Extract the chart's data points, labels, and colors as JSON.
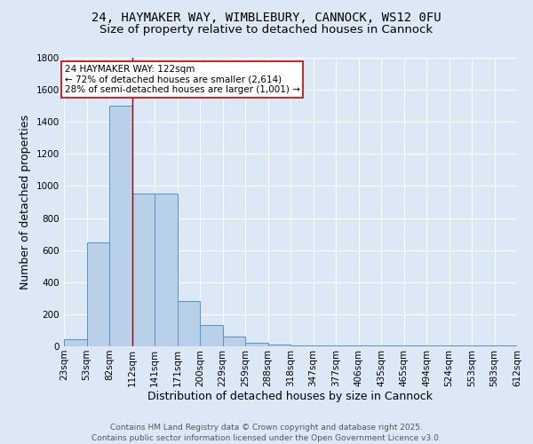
{
  "title_line1": "24, HAYMAKER WAY, WIMBLEBURY, CANNOCK, WS12 0FU",
  "title_line2": "Size of property relative to detached houses in Cannock",
  "xlabel": "Distribution of detached houses by size in Cannock",
  "ylabel": "Number of detached properties",
  "bar_values": [
    45,
    650,
    1500,
    950,
    950,
    280,
    135,
    60,
    20,
    10,
    8,
    5,
    5,
    5,
    3,
    3,
    3,
    3,
    3,
    3
  ],
  "bin_labels": [
    "23sqm",
    "53sqm",
    "82sqm",
    "112sqm",
    "141sqm",
    "171sqm",
    "200sqm",
    "229sqm",
    "259sqm",
    "288sqm",
    "318sqm",
    "347sqm",
    "377sqm",
    "406sqm",
    "435sqm",
    "465sqm",
    "494sqm",
    "524sqm",
    "553sqm",
    "583sqm",
    "612sqm"
  ],
  "bar_color": "#b8d0e8",
  "bar_edge_color": "#5590c8",
  "background_color": "#dce8f5",
  "grid_color": "#ffffff",
  "vline_x_data": 3.0,
  "vline_color": "#990000",
  "annotation_text": "24 HAYMAKER WAY: 122sqm\n← 72% of detached houses are smaller (2,614)\n28% of semi-detached houses are larger (1,001) →",
  "annotation_box_color": "#ffffff",
  "annotation_box_edge": "#cc0000",
  "ylim": [
    0,
    1800
  ],
  "yticks": [
    0,
    200,
    400,
    600,
    800,
    1000,
    1200,
    1400,
    1600,
    1800
  ],
  "footer_text": "Contains HM Land Registry data © Crown copyright and database right 2025.\nContains public sector information licensed under the Open Government Licence v3.0.",
  "title_fontsize": 10,
  "subtitle_fontsize": 9.5,
  "label_fontsize": 9,
  "tick_fontsize": 7.5,
  "footer_fontsize": 6.5,
  "annot_fontsize": 7.5
}
